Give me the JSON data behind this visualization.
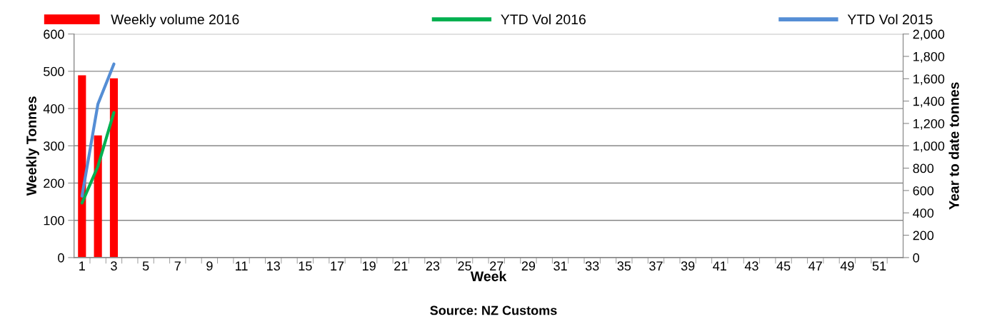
{
  "chart_data": {
    "type": "bar",
    "xlabel": "Week",
    "ylabel": "Weekly Tonnes",
    "y2label": "Year to date tonnes",
    "categories": [
      "1",
      null,
      "3",
      null,
      "5",
      null,
      "7",
      null,
      "9",
      null,
      "11",
      null,
      "13",
      null,
      "15",
      null,
      "17",
      null,
      "19",
      null,
      "21",
      null,
      "23",
      null,
      "25",
      null,
      "27",
      null,
      "29",
      null,
      "31",
      null,
      "33",
      null,
      "35",
      null,
      "37",
      null,
      "39",
      null,
      "41",
      null,
      "43",
      null,
      "45",
      null,
      "47",
      null,
      "49",
      null,
      "51",
      null
    ],
    "series": [
      {
        "name": "Weekly volume 2016",
        "color": "#ff0000",
        "values": [
          489,
          328,
          481,
          null,
          null,
          null,
          null,
          null,
          null,
          null,
          null,
          null,
          null,
          null,
          null,
          null,
          null,
          null,
          null,
          null,
          null,
          null,
          null,
          null,
          null,
          null,
          null,
          null,
          null,
          null,
          null,
          null,
          null,
          null,
          null,
          null,
          null,
          null,
          null,
          null,
          null,
          null,
          null,
          null,
          null,
          null,
          null,
          null,
          null,
          null,
          null,
          null
        ]
      },
      {
        "name": "YTD Vol 2016",
        "type": "line",
        "axis": "y2",
        "color": "#00b050",
        "values": [
          489,
          817,
          1298,
          null,
          null,
          null,
          null,
          null,
          null,
          null,
          null,
          null,
          null,
          null,
          null,
          null,
          null,
          null,
          null,
          null,
          null,
          null,
          null,
          null,
          null,
          null,
          null,
          null,
          null,
          null,
          null,
          null,
          null,
          null,
          null,
          null,
          null,
          null,
          null,
          null,
          null,
          null,
          null,
          null,
          null,
          null,
          null,
          null,
          null,
          null,
          null,
          null
        ]
      },
      {
        "name": "YTD Vol 2015",
        "type": "line",
        "axis": "y2",
        "color": "#558ed5",
        "values": [
          550,
          1374,
          1732,
          null,
          null,
          null,
          null,
          null,
          null,
          null,
          null,
          null,
          null,
          null,
          null,
          null,
          null,
          null,
          null,
          null,
          null,
          null,
          null,
          null,
          null,
          null,
          null,
          null,
          null,
          null,
          null,
          null,
          null,
          null,
          null,
          null,
          null,
          null,
          null,
          null,
          null,
          null,
          null,
          null,
          null,
          null,
          null,
          null,
          null,
          null,
          null,
          null
        ]
      }
    ],
    "ylim": [
      0,
      600
    ],
    "yticks": [
      0,
      100,
      200,
      300,
      400,
      500,
      600
    ],
    "y2lim": [
      0,
      2000
    ],
    "y2ticks": [
      {
        "value": 0,
        "label": "0"
      },
      {
        "value": 200,
        "label": "200"
      },
      {
        "value": 400,
        "label": "400"
      },
      {
        "value": 600,
        "label": "600"
      },
      {
        "value": 800,
        "label": "800"
      },
      {
        "value": 1000,
        "label": "1,000"
      },
      {
        "value": 1200,
        "label": "1,200"
      },
      {
        "value": 1400,
        "label": "1,400"
      },
      {
        "value": 1600,
        "label": "1,600"
      },
      {
        "value": 1800,
        "label": "1,800"
      },
      {
        "value": 2000,
        "label": "2,000"
      }
    ],
    "grid": "y",
    "legend": "top",
    "marker": "none",
    "line_style": "solid",
    "annotations": [
      "Source: NZ Customs"
    ]
  }
}
